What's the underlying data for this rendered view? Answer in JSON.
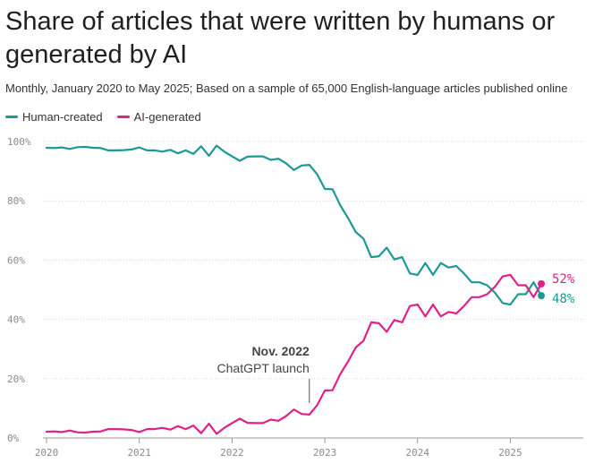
{
  "chart_data": {
    "type": "line",
    "title": "Share of articles that were written by humans or generated by AI",
    "subtitle": "Monthly, January 2020 to May 2025; Based on a sample of 65,000 English-language articles published online",
    "xlabel": "",
    "ylabel": "",
    "ylim": [
      0,
      100
    ],
    "grid": true,
    "legend_position": "top-left",
    "y_ticks": [
      "0%",
      "20%",
      "40%",
      "60%",
      "80%",
      "100%"
    ],
    "y_tick_values": [
      0,
      20,
      40,
      60,
      80,
      100
    ],
    "x_ticks": [
      "2020",
      "2021",
      "2022",
      "2023",
      "2024",
      "2025"
    ],
    "x_tick_values": [
      "2020-01",
      "2021-01",
      "2022-01",
      "2023-01",
      "2024-01",
      "2025-01"
    ],
    "x_range": [
      "2020-01",
      "2025-05"
    ],
    "x": [
      "2020-01",
      "2020-02",
      "2020-03",
      "2020-04",
      "2020-05",
      "2020-06",
      "2020-07",
      "2020-08",
      "2020-09",
      "2020-10",
      "2020-11",
      "2020-12",
      "2021-01",
      "2021-02",
      "2021-03",
      "2021-04",
      "2021-05",
      "2021-06",
      "2021-07",
      "2021-08",
      "2021-09",
      "2021-10",
      "2021-11",
      "2021-12",
      "2022-01",
      "2022-02",
      "2022-03",
      "2022-04",
      "2022-05",
      "2022-06",
      "2022-07",
      "2022-08",
      "2022-09",
      "2022-10",
      "2022-11",
      "2022-12",
      "2023-01",
      "2023-02",
      "2023-03",
      "2023-04",
      "2023-05",
      "2023-06",
      "2023-07",
      "2023-08",
      "2023-09",
      "2023-10",
      "2023-11",
      "2023-12",
      "2024-01",
      "2024-02",
      "2024-03",
      "2024-04",
      "2024-05",
      "2024-06",
      "2024-07",
      "2024-08",
      "2024-09",
      "2024-10",
      "2024-11",
      "2024-12",
      "2025-01",
      "2025-02",
      "2025-03",
      "2025-04",
      "2025-05"
    ],
    "series": [
      {
        "name": "Human-created",
        "color": "#1a9a93",
        "end_label": "48%",
        "values": [
          97.9,
          97.8,
          98.0,
          97.5,
          98.1,
          98.2,
          97.9,
          97.8,
          97.0,
          97.0,
          97.1,
          97.3,
          98.0,
          97.0,
          97.0,
          96.6,
          97.2,
          96.0,
          97.0,
          95.8,
          98.4,
          95.2,
          98.6,
          96.6,
          95.0,
          93.5,
          94.9,
          95.0,
          95.0,
          93.8,
          94.2,
          92.6,
          90.4,
          91.9,
          92.1,
          89.0,
          84.0,
          83.9,
          78.5,
          74.2,
          69.5,
          67.2,
          61.0,
          61.3,
          64.2,
          60.2,
          61.0,
          55.5,
          55.0,
          59.0,
          55.0,
          59.0,
          57.5,
          58.0,
          55.5,
          52.5,
          52.5,
          51.5,
          49.0,
          45.5,
          45.0,
          48.5,
          48.5,
          52.5,
          48.0
        ]
      },
      {
        "name": "AI-generated",
        "color": "#e0218a",
        "end_label": "52%",
        "values": [
          2.1,
          2.2,
          2.0,
          2.5,
          1.9,
          1.8,
          2.1,
          2.2,
          3.0,
          3.0,
          2.9,
          2.7,
          2.0,
          3.0,
          3.0,
          3.4,
          2.8,
          4.0,
          3.0,
          4.2,
          1.6,
          4.8,
          1.4,
          3.4,
          5.0,
          6.5,
          5.1,
          5.0,
          5.0,
          6.2,
          5.8,
          7.4,
          9.6,
          8.1,
          7.9,
          11.0,
          16.0,
          16.1,
          21.5,
          25.8,
          30.5,
          32.8,
          39.0,
          38.7,
          35.8,
          39.8,
          39.0,
          44.5,
          45.0,
          41.0,
          45.0,
          41.0,
          42.5,
          42.0,
          44.5,
          47.5,
          47.5,
          48.5,
          51.0,
          54.5,
          55.0,
          51.5,
          51.5,
          47.5,
          52.0
        ]
      }
    ],
    "annotation": {
      "x": "2022-11",
      "line1": "Nov. 2022",
      "line2": "ChatGPT launch"
    }
  }
}
